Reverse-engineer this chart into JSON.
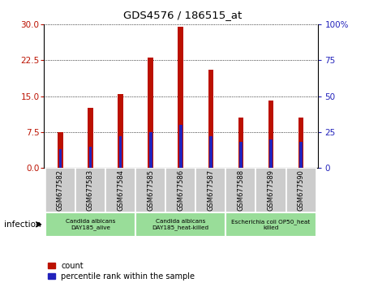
{
  "title": "GDS4576 / 186515_at",
  "samples": [
    "GSM677582",
    "GSM677583",
    "GSM677584",
    "GSM677585",
    "GSM677586",
    "GSM677587",
    "GSM677588",
    "GSM677589",
    "GSM677590"
  ],
  "count_values": [
    7.5,
    12.5,
    15.5,
    23.0,
    29.5,
    20.5,
    10.5,
    14.0,
    10.5
  ],
  "percentile_values": [
    13,
    15,
    22,
    25,
    30,
    22,
    18,
    20,
    18
  ],
  "left_ylim": [
    0,
    30
  ],
  "right_ylim": [
    0,
    100
  ],
  "left_yticks": [
    0,
    7.5,
    15,
    22.5,
    30
  ],
  "right_yticks": [
    0,
    25,
    50,
    75,
    100
  ],
  "right_yticklabels": [
    "0",
    "25",
    "50",
    "75",
    "100%"
  ],
  "bar_color": "#bb1100",
  "percentile_color": "#2222bb",
  "groups": [
    {
      "label": "Candida albicans\nDAY185_alive",
      "start": 0,
      "end": 3
    },
    {
      "label": "Candida albicans\nDAY185_heat-killed",
      "start": 3,
      "end": 6
    },
    {
      "label": "Escherichia coli OP50_heat\nkilled",
      "start": 6,
      "end": 9
    }
  ],
  "group_bg_color": "#99dd99",
  "tick_bg_color": "#cccccc",
  "infection_label": "infection",
  "legend_count_label": "count",
  "legend_percentile_label": "percentile rank within the sample",
  "bar_width": 0.18,
  "pct_bar_width": 0.1
}
